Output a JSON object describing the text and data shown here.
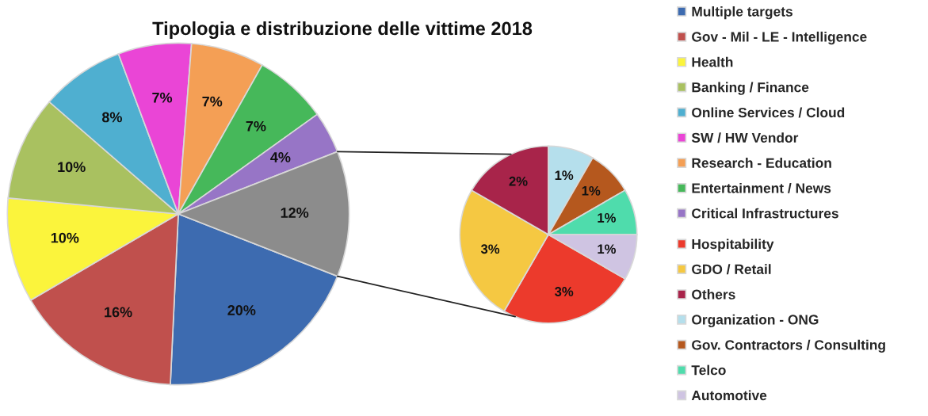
{
  "chart_data": [
    {
      "type": "pie",
      "title": "Tipologia e distribuzione delle vittime 2018",
      "categories": [
        "Multiple targets",
        "Gov - Mil - LE - Intelligence",
        "Health",
        "Banking / Finance",
        "Online Services / Cloud",
        "SW / HW Vendor",
        "Research - Education",
        "Entertainment / News",
        "Critical Infrastructures",
        null
      ],
      "values": [
        20,
        16,
        10,
        10,
        8,
        7,
        7,
        7,
        4,
        12
      ],
      "value_labels": [
        "20%",
        "16%",
        "10%",
        "10%",
        "8%",
        "7%",
        "7%",
        "7%",
        "4%",
        "12%"
      ],
      "colors": [
        "#3d6bb0",
        "#c0504d",
        "#fbf43c",
        "#a9c160",
        "#4fafd0",
        "#ea45d6",
        "#f49f55",
        "#46b85a",
        "#9775c6",
        "#8c8c8c"
      ],
      "legend": "right"
    },
    {
      "type": "pie",
      "categories": [
        "Hospitability",
        "GDO / Retail",
        "Others",
        "Organization - ONG",
        "Gov. Contractors / Consulting",
        "Telco",
        "Automotive"
      ],
      "values": [
        3,
        3,
        2,
        1,
        1,
        1,
        1
      ],
      "value_labels": [
        "3%",
        "3%",
        "2%",
        "1%",
        "1%",
        "1%",
        "1%"
      ],
      "colors": [
        "#ec3a2c",
        "#f5c842",
        "#a8244a",
        "#b5dfec",
        "#b5581e",
        "#4fdcac",
        "#cfc4e2"
      ],
      "legend": "right"
    }
  ]
}
